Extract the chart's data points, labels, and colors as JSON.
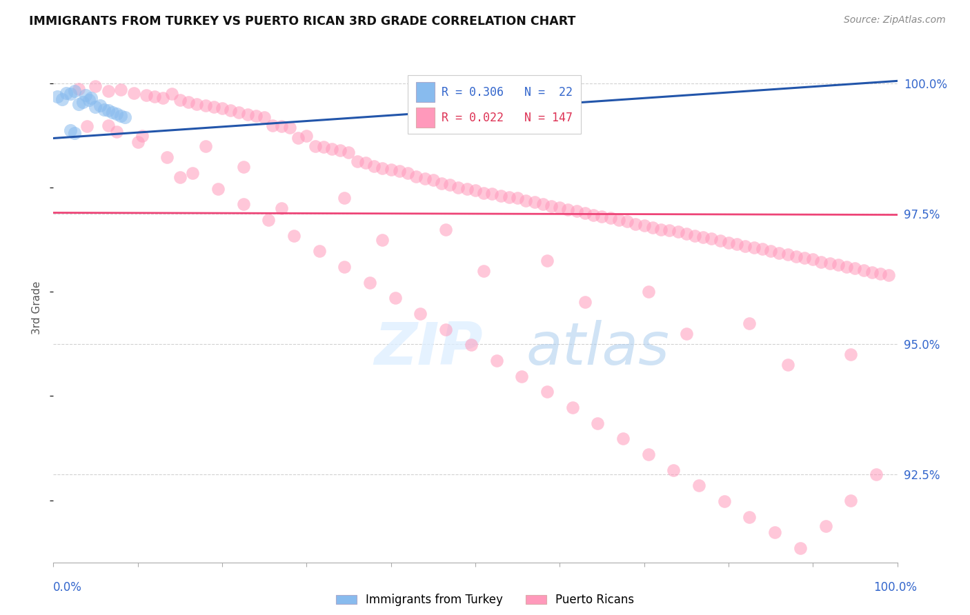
{
  "title": "IMMIGRANTS FROM TURKEY VS PUERTO RICAN 3RD GRADE CORRELATION CHART",
  "source": "Source: ZipAtlas.com",
  "ylabel": "3rd Grade",
  "ylabel_right_labels": [
    "92.5%",
    "95.0%",
    "97.5%",
    "100.0%"
  ],
  "ylabel_right_values": [
    0.925,
    0.95,
    0.975,
    1.0
  ],
  "xmin": 0.0,
  "xmax": 1.0,
  "ymin": 0.908,
  "ymax": 1.006,
  "legend_blue_r": "R = 0.306",
  "legend_blue_n": "N =  22",
  "legend_pink_r": "R = 0.022",
  "legend_pink_n": "N = 147",
  "blue_color": "#88BBEE",
  "pink_color": "#FF99BB",
  "blue_line_color": "#2255AA",
  "pink_line_color": "#EE4477",
  "watermark_zip": "ZIP",
  "watermark_atlas": "atlas",
  "blue_x": [
    0.005,
    0.01,
    0.015,
    0.02,
    0.025,
    0.03,
    0.035,
    0.038,
    0.042,
    0.045,
    0.05,
    0.055,
    0.06,
    0.065,
    0.07,
    0.075,
    0.08,
    0.085,
    0.02,
    0.025,
    0.59,
    0.61
  ],
  "blue_y": [
    0.9975,
    0.997,
    0.9982,
    0.998,
    0.9985,
    0.996,
    0.9965,
    0.9978,
    0.9968,
    0.9972,
    0.9955,
    0.9958,
    0.995,
    0.9948,
    0.9945,
    0.9942,
    0.9938,
    0.9935,
    0.991,
    0.9905,
    1.0,
    0.9995
  ],
  "blue_line_x": [
    0.0,
    1.0
  ],
  "blue_line_y": [
    0.9895,
    1.0005
  ],
  "pink_line_x": [
    0.0,
    1.0
  ],
  "pink_line_y": [
    0.9752,
    0.9748
  ],
  "pink_x": [
    0.03,
    0.05,
    0.065,
    0.08,
    0.095,
    0.11,
    0.12,
    0.13,
    0.14,
    0.15,
    0.16,
    0.17,
    0.18,
    0.19,
    0.2,
    0.21,
    0.22,
    0.23,
    0.24,
    0.25,
    0.26,
    0.27,
    0.28,
    0.29,
    0.3,
    0.31,
    0.32,
    0.33,
    0.34,
    0.35,
    0.36,
    0.37,
    0.38,
    0.39,
    0.4,
    0.41,
    0.42,
    0.43,
    0.44,
    0.45,
    0.46,
    0.47,
    0.48,
    0.49,
    0.5,
    0.51,
    0.52,
    0.53,
    0.54,
    0.55,
    0.56,
    0.57,
    0.58,
    0.59,
    0.6,
    0.61,
    0.62,
    0.63,
    0.64,
    0.65,
    0.66,
    0.67,
    0.68,
    0.69,
    0.7,
    0.71,
    0.72,
    0.73,
    0.74,
    0.75,
    0.76,
    0.77,
    0.78,
    0.79,
    0.8,
    0.81,
    0.82,
    0.83,
    0.84,
    0.85,
    0.86,
    0.87,
    0.88,
    0.89,
    0.9,
    0.91,
    0.92,
    0.93,
    0.94,
    0.95,
    0.96,
    0.97,
    0.98,
    0.99,
    0.04,
    0.075,
    0.1,
    0.135,
    0.165,
    0.195,
    0.225,
    0.255,
    0.285,
    0.315,
    0.345,
    0.375,
    0.405,
    0.435,
    0.465,
    0.495,
    0.525,
    0.555,
    0.585,
    0.615,
    0.645,
    0.675,
    0.705,
    0.735,
    0.765,
    0.795,
    0.825,
    0.855,
    0.885,
    0.915,
    0.945,
    0.975,
    0.065,
    0.15,
    0.27,
    0.39,
    0.51,
    0.63,
    0.75,
    0.87,
    0.105,
    0.225,
    0.345,
    0.465,
    0.585,
    0.705,
    0.825,
    0.945,
    0.18
  ],
  "pink_y": [
    0.999,
    0.9995,
    0.9985,
    0.9988,
    0.9982,
    0.9978,
    0.9975,
    0.9972,
    0.998,
    0.9968,
    0.9965,
    0.996,
    0.9958,
    0.9955,
    0.9952,
    0.9948,
    0.9945,
    0.994,
    0.9938,
    0.9935,
    0.992,
    0.9918,
    0.9915,
    0.9895,
    0.99,
    0.988,
    0.9878,
    0.9875,
    0.9872,
    0.9868,
    0.985,
    0.9848,
    0.9842,
    0.9838,
    0.9835,
    0.9832,
    0.9828,
    0.9822,
    0.9818,
    0.9815,
    0.9808,
    0.9805,
    0.98,
    0.9798,
    0.9795,
    0.979,
    0.9788,
    0.9785,
    0.9782,
    0.978,
    0.9775,
    0.9772,
    0.9768,
    0.9765,
    0.9762,
    0.9758,
    0.9755,
    0.9752,
    0.9748,
    0.9745,
    0.9742,
    0.9738,
    0.9735,
    0.973,
    0.9728,
    0.9724,
    0.972,
    0.9718,
    0.9715,
    0.9712,
    0.9708,
    0.9705,
    0.9702,
    0.9698,
    0.9695,
    0.9692,
    0.9688,
    0.9685,
    0.9682,
    0.9678,
    0.9675,
    0.9672,
    0.9668,
    0.9665,
    0.9662,
    0.9658,
    0.9655,
    0.9652,
    0.9648,
    0.9645,
    0.9642,
    0.9638,
    0.9635,
    0.9632,
    0.9918,
    0.9908,
    0.9888,
    0.9858,
    0.9828,
    0.9798,
    0.9768,
    0.9738,
    0.9708,
    0.9678,
    0.9648,
    0.9618,
    0.9588,
    0.9558,
    0.9528,
    0.9498,
    0.9468,
    0.9438,
    0.9408,
    0.9378,
    0.9348,
    0.9318,
    0.9288,
    0.9258,
    0.9228,
    0.9198,
    0.9168,
    0.9138,
    0.9108,
    0.915,
    0.92,
    0.925,
    0.992,
    0.982,
    0.976,
    0.97,
    0.964,
    0.958,
    0.952,
    0.946,
    0.99,
    0.984,
    0.978,
    0.972,
    0.966,
    0.96,
    0.954,
    0.948,
    0.988
  ]
}
